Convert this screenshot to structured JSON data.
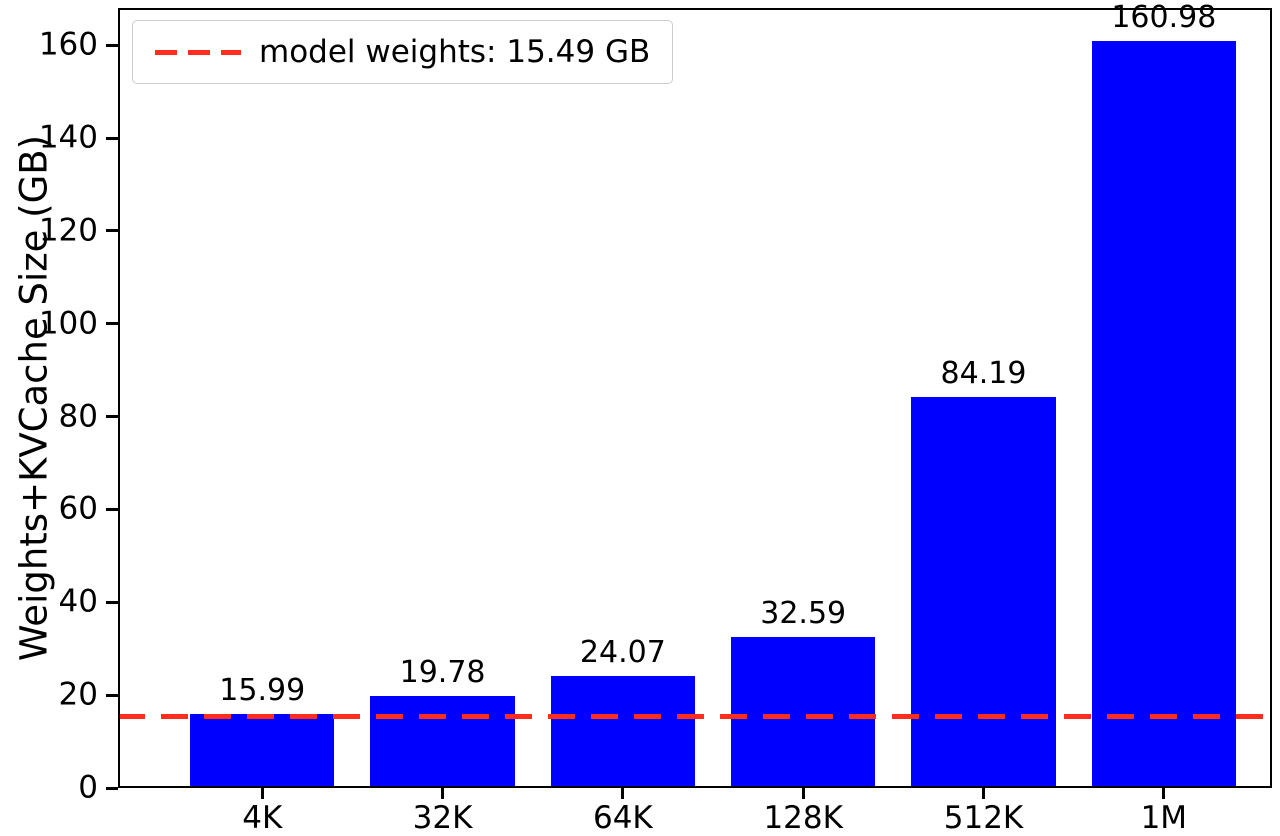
{
  "chart_data": {
    "type": "bar",
    "title": "",
    "xlabel": "",
    "ylabel": "Weights+KVCache Size (GB)",
    "categories": [
      "4K",
      "32K",
      "64K",
      "128K",
      "512K",
      "1M"
    ],
    "values": [
      15.99,
      19.78,
      24.07,
      32.59,
      84.19,
      160.98
    ],
    "bar_labels": [
      "15.99",
      "19.78",
      "24.07",
      "32.59",
      "84.19",
      "160.98"
    ],
    "bar_color": "#0000ff",
    "yticks": [
      0,
      20,
      40,
      60,
      80,
      100,
      120,
      140,
      160
    ],
    "ylim": [
      0,
      168
    ],
    "grid": false,
    "legend_position": "upper left",
    "reference_line": {
      "value": 15.49,
      "style": "dashed",
      "color": "#ff2d1e",
      "label": "model weights: 15.49 GB"
    }
  }
}
